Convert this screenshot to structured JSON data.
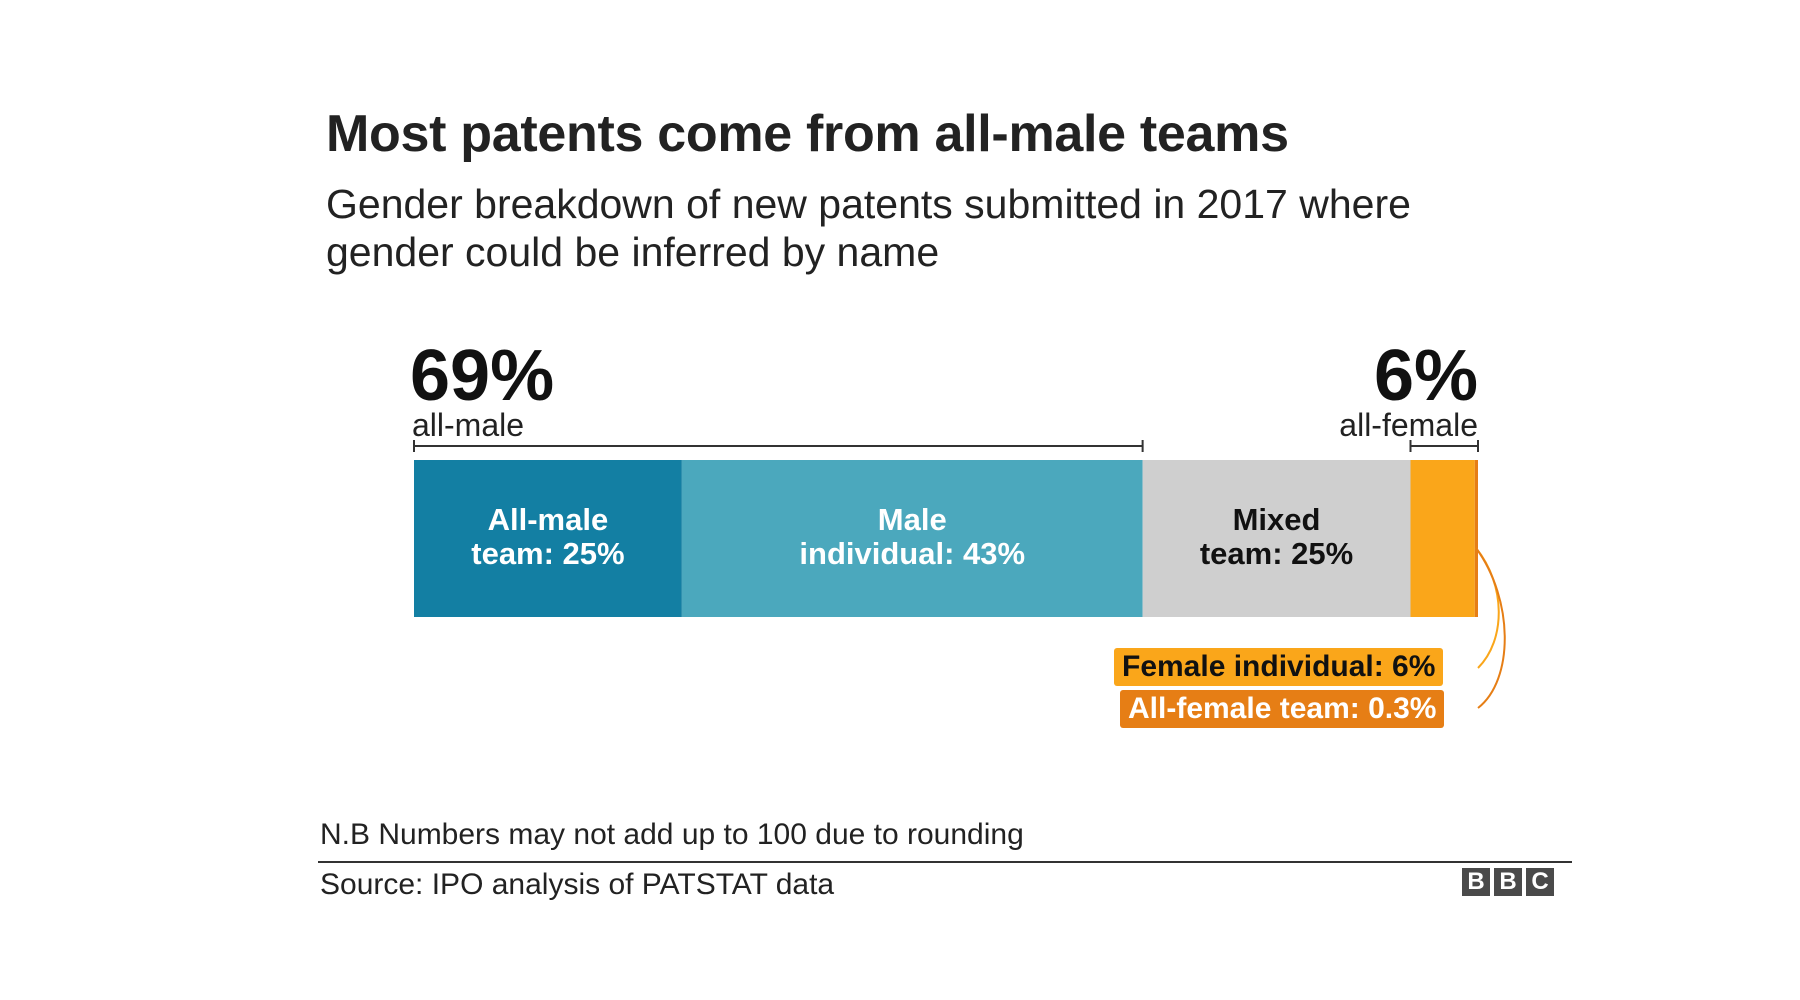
{
  "header": {
    "title": "Most patents come from all-male teams",
    "subtitle": "Gender breakdown of new patents submitted in 2017 where gender could be inferred by name"
  },
  "groups": {
    "male": {
      "value": "69%",
      "label": "all-male"
    },
    "female": {
      "value": "6%",
      "label": "all-female"
    }
  },
  "segment_labels": {
    "all_male_team": [
      "All-male",
      "team: 25%"
    ],
    "male_individual": [
      "Male",
      "individual: 43%"
    ],
    "mixed_team": [
      "Mixed",
      "team: 25%"
    ]
  },
  "callouts": {
    "female_individual": "Female individual: 6%",
    "all_female_team": "All-female team: 0.3%"
  },
  "footer": {
    "note": "N.B Numbers may not add up to 100 due to rounding",
    "source": "Source: IPO analysis of PATSTAT data",
    "logo": [
      "B",
      "B",
      "C"
    ]
  },
  "colors": {
    "all_male_team": "#137fa3",
    "male_individual": "#4ba8bd",
    "mixed_team": "#cfcfcf",
    "female_individual": "#faa61a",
    "all_female_team": "#e67e15"
  },
  "chart_data": {
    "type": "bar",
    "orientation": "horizontal-stacked",
    "title": "Most patents come from all-male teams",
    "subtitle": "Gender breakdown of new patents submitted in 2017 where gender could be inferred by name",
    "series": [
      {
        "name": "All-male team",
        "values": [
          25
        ]
      },
      {
        "name": "Male individual",
        "values": [
          43
        ]
      },
      {
        "name": "Mixed team",
        "values": [
          25
        ]
      },
      {
        "name": "Female individual",
        "values": [
          6
        ]
      },
      {
        "name": "All-female team",
        "values": [
          0.3
        ]
      }
    ],
    "groups": [
      {
        "label": "all-male",
        "value": 69
      },
      {
        "label": "all-female",
        "value": 6
      }
    ],
    "xlim": [
      0,
      99.3
    ],
    "grid": false,
    "legend": "inline"
  }
}
